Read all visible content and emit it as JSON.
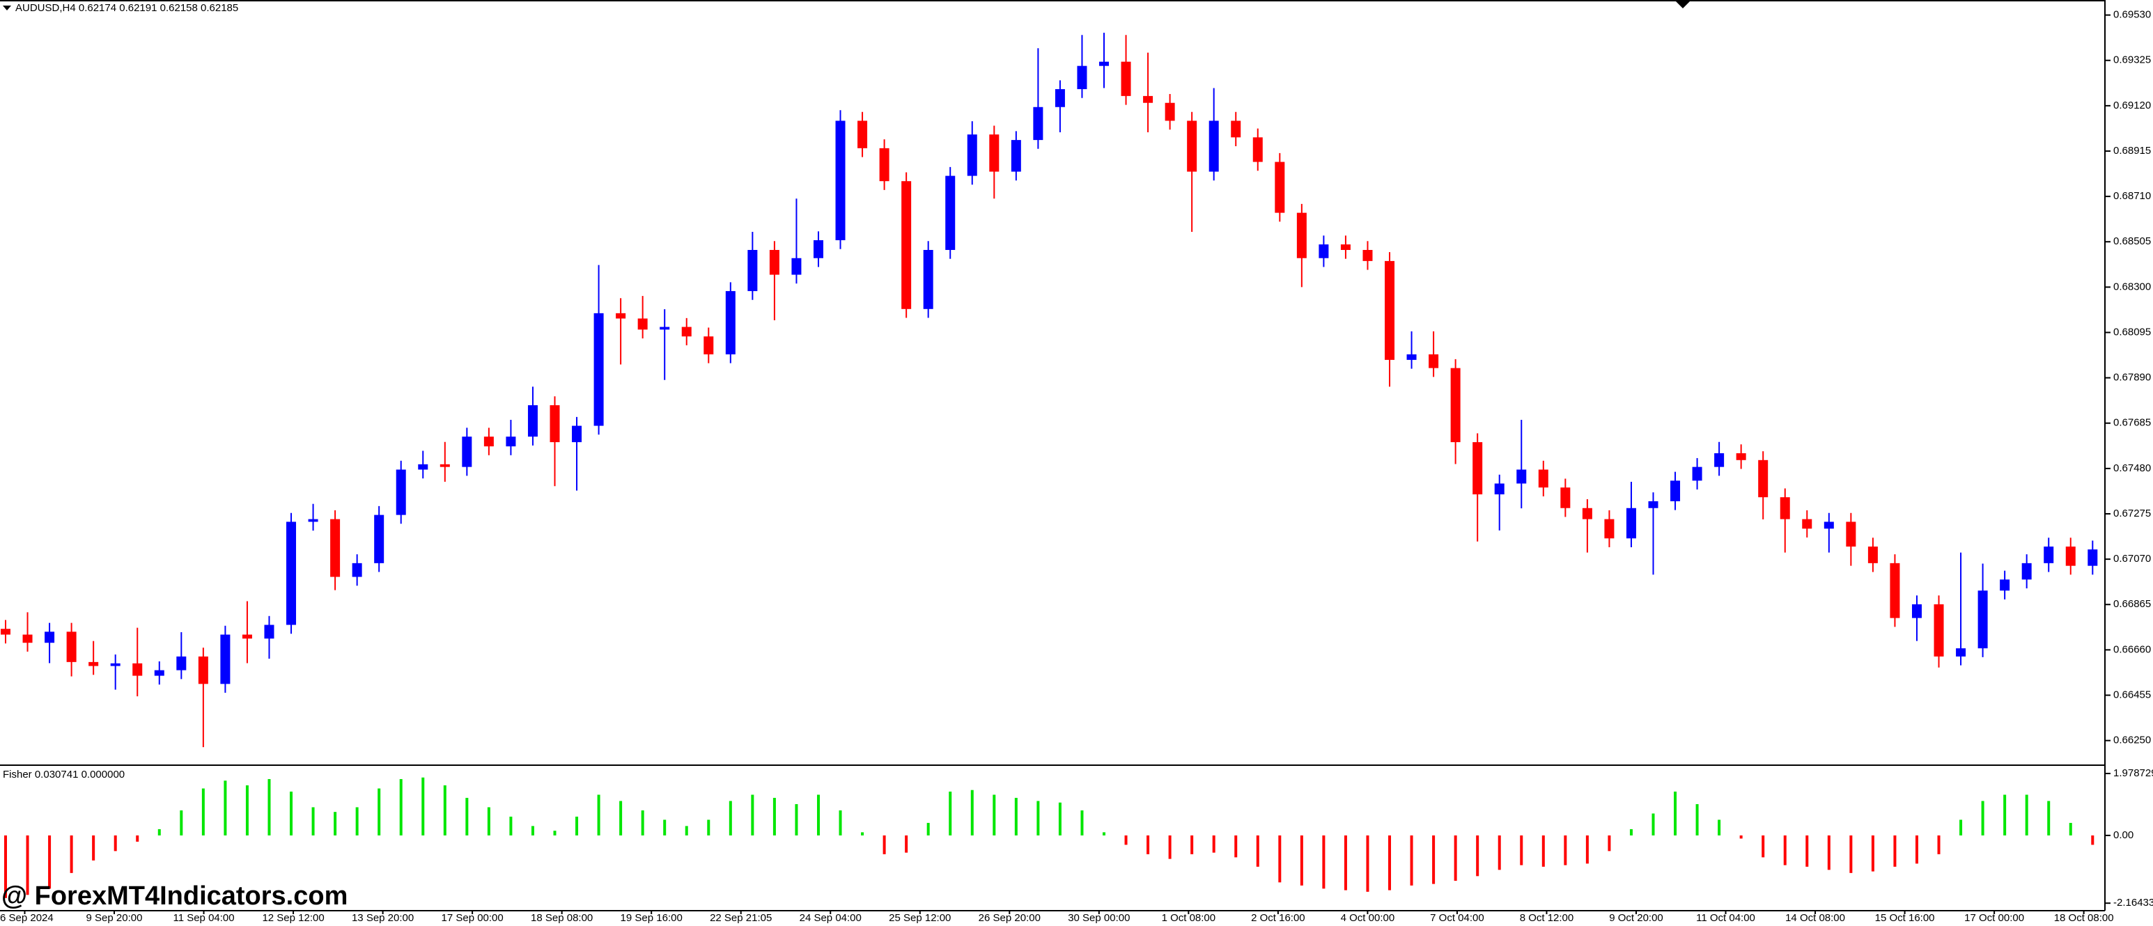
{
  "chart_data": {
    "type": "candlestick",
    "title": "AUDUSD,H4  0.62174 0.62191 0.62158 0.62185",
    "watermark": "@ ForexMT4Indicators.com",
    "up_color": "#0000ff",
    "down_color": "#ff0000",
    "ylim": [
      0.66145,
      0.69598
    ],
    "yticks": [
      {
        "value": 0.6953,
        "label": "0.69530"
      },
      {
        "value": 0.69325,
        "label": "0.69325"
      },
      {
        "value": 0.6912,
        "label": "0.69120"
      },
      {
        "value": 0.68915,
        "label": "0.68915"
      },
      {
        "value": 0.6871,
        "label": "0.68710"
      },
      {
        "value": 0.68505,
        "label": "0.68505"
      },
      {
        "value": 0.683,
        "label": "0.68300"
      },
      {
        "value": 0.68095,
        "label": "0.68095"
      },
      {
        "value": 0.6789,
        "label": "0.67890"
      },
      {
        "value": 0.67685,
        "label": "0.67685"
      },
      {
        "value": 0.6748,
        "label": "0.67480"
      },
      {
        "value": 0.67275,
        "label": "0.67275"
      },
      {
        "value": 0.6707,
        "label": "0.67070"
      },
      {
        "value": 0.66865,
        "label": "0.66865"
      },
      {
        "value": 0.6666,
        "label": "0.66660"
      },
      {
        "value": 0.66455,
        "label": "0.66455"
      },
      {
        "value": 0.6625,
        "label": "0.66250"
      }
    ],
    "x_labels": [
      "6 Sep 2024",
      "9 Sep 20:00",
      "11 Sep 04:00",
      "12 Sep 12:00",
      "13 Sep 20:00",
      "17 Sep 00:00",
      "18 Sep 08:00",
      "19 Sep 16:00",
      "22 Sep 21:05",
      "24 Sep 04:00",
      "25 Sep 12:00",
      "26 Sep 20:00",
      "30 Sep 00:00",
      "1 Oct 08:00",
      "2 Oct 16:00",
      "4 Oct 00:00",
      "7 Oct 04:00",
      "8 Oct 12:00",
      "9 Oct 20:00",
      "11 Oct 04:00",
      "14 Oct 08:00",
      "15 Oct 16:00",
      "17 Oct 00:00",
      "18 Oct 08:00"
    ],
    "candles": [
      [
        0.66755,
        0.66795,
        0.66689,
        0.66729
      ],
      [
        0.66729,
        0.6683,
        0.66652,
        0.66692
      ],
      [
        0.66692,
        0.66782,
        0.666,
        0.66742
      ],
      [
        0.66742,
        0.66782,
        0.6654,
        0.66605
      ],
      [
        0.66605,
        0.667,
        0.66547,
        0.66587
      ],
      [
        0.66587,
        0.66639,
        0.6648,
        0.66599
      ],
      [
        0.66599,
        0.6676,
        0.6645,
        0.66543
      ],
      [
        0.66543,
        0.66608,
        0.66503,
        0.66568
      ],
      [
        0.66568,
        0.6674,
        0.66528,
        0.6663
      ],
      [
        0.6663,
        0.6667,
        0.6622,
        0.66506
      ],
      [
        0.66506,
        0.66769,
        0.66466,
        0.66729
      ],
      [
        0.66729,
        0.6688,
        0.666,
        0.66711
      ],
      [
        0.66711,
        0.66813,
        0.6662,
        0.66773
      ],
      [
        0.66773,
        0.67279,
        0.66733,
        0.67239
      ],
      [
        0.67239,
        0.6732,
        0.67199,
        0.67251
      ],
      [
        0.67251,
        0.67291,
        0.6693,
        0.6699
      ],
      [
        0.6699,
        0.67092,
        0.6695,
        0.67052
      ],
      [
        0.67052,
        0.6731,
        0.67012,
        0.6727
      ],
      [
        0.6727,
        0.67515,
        0.6723,
        0.67475
      ],
      [
        0.67475,
        0.6756,
        0.67435,
        0.67499
      ],
      [
        0.67499,
        0.676,
        0.6742,
        0.67487
      ],
      [
        0.67487,
        0.67664,
        0.67447,
        0.67624
      ],
      [
        0.67624,
        0.67664,
        0.6754,
        0.6758
      ],
      [
        0.6758,
        0.677,
        0.6754,
        0.67624
      ],
      [
        0.67624,
        0.6785,
        0.67584,
        0.67766
      ],
      [
        0.67766,
        0.67806,
        0.674,
        0.67599
      ],
      [
        0.67599,
        0.67713,
        0.6738,
        0.67673
      ],
      [
        0.67673,
        0.684,
        0.67633,
        0.68182
      ],
      [
        0.68182,
        0.6825,
        0.6795,
        0.68158
      ],
      [
        0.68158,
        0.6826,
        0.68068,
        0.68108
      ],
      [
        0.68108,
        0.682,
        0.6788,
        0.6812
      ],
      [
        0.6812,
        0.6816,
        0.68037,
        0.68077
      ],
      [
        0.68077,
        0.68117,
        0.67956,
        0.67996
      ],
      [
        0.67996,
        0.68322,
        0.67956,
        0.68282
      ],
      [
        0.68282,
        0.6855,
        0.68242,
        0.68468
      ],
      [
        0.68468,
        0.68508,
        0.6815,
        0.68356
      ],
      [
        0.68356,
        0.687,
        0.68316,
        0.68431
      ],
      [
        0.68431,
        0.68552,
        0.68391,
        0.68512
      ],
      [
        0.68512,
        0.691,
        0.68472,
        0.69052
      ],
      [
        0.69052,
        0.69092,
        0.68888,
        0.68928
      ],
      [
        0.68928,
        0.68968,
        0.68739,
        0.68779
      ],
      [
        0.68779,
        0.68819,
        0.68161,
        0.68201
      ],
      [
        0.68201,
        0.68508,
        0.68161,
        0.68468
      ],
      [
        0.68468,
        0.68843,
        0.68428,
        0.68803
      ],
      [
        0.68803,
        0.6905,
        0.68763,
        0.6899
      ],
      [
        0.6899,
        0.6903,
        0.687,
        0.68822
      ],
      [
        0.68822,
        0.69005,
        0.68782,
        0.68965
      ],
      [
        0.68965,
        0.6938,
        0.68925,
        0.69114
      ],
      [
        0.69114,
        0.69235,
        0.69,
        0.69195
      ],
      [
        0.69195,
        0.6944,
        0.69155,
        0.693
      ],
      [
        0.693,
        0.6945,
        0.692,
        0.69319
      ],
      [
        0.69319,
        0.6944,
        0.69124,
        0.69164
      ],
      [
        0.69164,
        0.6936,
        0.69,
        0.69133
      ],
      [
        0.69133,
        0.69173,
        0.69012,
        0.69052
      ],
      [
        0.69052,
        0.69092,
        0.6855,
        0.68822
      ],
      [
        0.68822,
        0.692,
        0.68782,
        0.69052
      ],
      [
        0.69052,
        0.69092,
        0.68937,
        0.68977
      ],
      [
        0.68977,
        0.69017,
        0.68826,
        0.68866
      ],
      [
        0.68866,
        0.68906,
        0.68596,
        0.68636
      ],
      [
        0.68636,
        0.68676,
        0.683,
        0.68431
      ],
      [
        0.68431,
        0.68533,
        0.68391,
        0.68493
      ],
      [
        0.68493,
        0.68533,
        0.68428,
        0.68468
      ],
      [
        0.68468,
        0.68508,
        0.68378,
        0.68418
      ],
      [
        0.68418,
        0.68458,
        0.6785,
        0.67971
      ],
      [
        0.67971,
        0.681,
        0.67931,
        0.67996
      ],
      [
        0.67996,
        0.681,
        0.67894,
        0.67934
      ],
      [
        0.67934,
        0.67974,
        0.675,
        0.67599
      ],
      [
        0.67599,
        0.67639,
        0.6715,
        0.67363
      ],
      [
        0.67363,
        0.67452,
        0.672,
        0.67412
      ],
      [
        0.67412,
        0.677,
        0.673,
        0.67475
      ],
      [
        0.67475,
        0.67515,
        0.67354,
        0.67394
      ],
      [
        0.67394,
        0.67434,
        0.67261,
        0.67301
      ],
      [
        0.67301,
        0.67341,
        0.671,
        0.67251
      ],
      [
        0.67251,
        0.67291,
        0.67124,
        0.67164
      ],
      [
        0.67164,
        0.6742,
        0.67124,
        0.67301
      ],
      [
        0.67301,
        0.67372,
        0.67,
        0.67332
      ],
      [
        0.67332,
        0.67465,
        0.67292,
        0.67425
      ],
      [
        0.67425,
        0.67527,
        0.67385,
        0.67487
      ],
      [
        0.67487,
        0.676,
        0.67447,
        0.67549
      ],
      [
        0.67549,
        0.67589,
        0.67478,
        0.67518
      ],
      [
        0.67518,
        0.67558,
        0.6725,
        0.6735
      ],
      [
        0.6735,
        0.6739,
        0.671,
        0.67251
      ],
      [
        0.67251,
        0.67291,
        0.67168,
        0.67208
      ],
      [
        0.67208,
        0.67279,
        0.671,
        0.67239
      ],
      [
        0.67239,
        0.67279,
        0.6704,
        0.67127
      ],
      [
        0.67127,
        0.67167,
        0.67012,
        0.67052
      ],
      [
        0.67052,
        0.67092,
        0.66764,
        0.66804
      ],
      [
        0.66804,
        0.66906,
        0.667,
        0.66866
      ],
      [
        0.66866,
        0.66906,
        0.6658,
        0.6663
      ],
      [
        0.6663,
        0.671,
        0.6659,
        0.66667
      ],
      [
        0.66667,
        0.6705,
        0.66627,
        0.66928
      ],
      [
        0.66928,
        0.67018,
        0.66888,
        0.66978
      ],
      [
        0.66978,
        0.67092,
        0.66938,
        0.67052
      ],
      [
        0.67052,
        0.67167,
        0.67012,
        0.67127
      ],
      [
        0.67127,
        0.67167,
        0.67,
        0.6704
      ],
      [
        0.6704,
        0.67154,
        0.67,
        0.67114
      ]
    ],
    "indicator": {
      "type": "bar",
      "title": "Fisher 0.030741 0.000000",
      "positive_color": "#00e600",
      "negative_color": "#ff0000",
      "ylim": [
        -2.36,
        2.2
      ],
      "yticks": [
        1.978729,
        {
          "value": 0,
          "label": "0.00"
        },
        -2.164336
      ],
      "values": [
        -2.0,
        -1.9,
        -1.7,
        -1.2,
        -0.8,
        -0.5,
        -0.2,
        0.2,
        0.8,
        1.5,
        1.75,
        1.6,
        1.8,
        1.4,
        0.9,
        0.75,
        0.9,
        1.5,
        1.8,
        1.85,
        1.6,
        1.2,
        0.9,
        0.6,
        0.3,
        0.15,
        0.6,
        1.3,
        1.1,
        0.8,
        0.5,
        0.3,
        0.5,
        1.1,
        1.3,
        1.2,
        1.0,
        1.3,
        0.8,
        0.1,
        -0.6,
        -0.55,
        0.4,
        1.4,
        1.45,
        1.3,
        1.2,
        1.1,
        1.05,
        0.8,
        0.1,
        -0.3,
        -0.6,
        -0.75,
        -0.6,
        -0.55,
        -0.7,
        -1.0,
        -1.5,
        -1.6,
        -1.7,
        -1.75,
        -1.8,
        -1.75,
        -1.6,
        -1.55,
        -1.45,
        -1.3,
        -1.1,
        -0.95,
        -1.0,
        -0.95,
        -0.9,
        -0.5,
        0.2,
        0.7,
        1.4,
        1.0,
        0.5,
        -0.1,
        -0.7,
        -0.95,
        -1.0,
        -1.1,
        -1.2,
        -1.15,
        -1.0,
        -0.9,
        -0.6,
        0.5,
        1.1,
        1.3,
        1.3,
        1.1,
        0.4,
        -0.3
      ]
    }
  }
}
